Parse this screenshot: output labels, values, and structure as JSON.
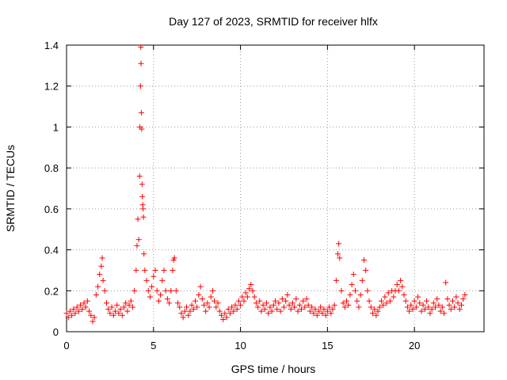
{
  "chart_data": {
    "type": "scatter",
    "title": "Day 127 of 2023, SRMTID for receiver hlfx",
    "xlabel": "GPS time / hours",
    "ylabel": "SRMTID / TECUs",
    "xlim": [
      0,
      24
    ],
    "ylim": [
      0,
      1.4
    ],
    "xticks": [
      0,
      5,
      10,
      15,
      20
    ],
    "yticks": [
      0,
      0.2,
      0.4,
      0.6,
      0.8,
      1,
      1.2,
      1.4
    ],
    "grid": true,
    "marker": "+",
    "color": "#ff0000",
    "series": [
      {
        "name": "SRMTID",
        "points": [
          [
            0.0,
            0.09
          ],
          [
            0.1,
            0.07
          ],
          [
            0.2,
            0.1
          ],
          [
            0.3,
            0.08
          ],
          [
            0.4,
            0.11
          ],
          [
            0.5,
            0.09
          ],
          [
            0.6,
            0.12
          ],
          [
            0.7,
            0.1
          ],
          [
            0.8,
            0.13
          ],
          [
            0.9,
            0.11
          ],
          [
            1.0,
            0.14
          ],
          [
            1.1,
            0.12
          ],
          [
            1.2,
            0.15
          ],
          [
            1.3,
            0.1
          ],
          [
            1.4,
            0.08
          ],
          [
            1.5,
            0.05
          ],
          [
            1.6,
            0.07
          ],
          [
            1.7,
            0.18
          ],
          [
            1.8,
            0.22
          ],
          [
            1.9,
            0.28
          ],
          [
            2.0,
            0.32
          ],
          [
            2.05,
            0.36
          ],
          [
            2.1,
            0.25
          ],
          [
            2.2,
            0.2
          ],
          [
            2.3,
            0.14
          ],
          [
            2.4,
            0.11
          ],
          [
            2.5,
            0.09
          ],
          [
            2.6,
            0.12
          ],
          [
            2.7,
            0.08
          ],
          [
            2.8,
            0.1
          ],
          [
            2.9,
            0.13
          ],
          [
            3.0,
            0.09
          ],
          [
            3.1,
            0.11
          ],
          [
            3.2,
            0.08
          ],
          [
            3.3,
            0.12
          ],
          [
            3.4,
            0.14
          ],
          [
            3.5,
            0.1
          ],
          [
            3.6,
            0.13
          ],
          [
            3.7,
            0.15
          ],
          [
            3.8,
            0.12
          ],
          [
            3.9,
            0.2
          ],
          [
            4.0,
            0.3
          ],
          [
            4.05,
            0.42
          ],
          [
            4.1,
            0.55
          ],
          [
            4.15,
            0.45
          ],
          [
            4.2,
            0.76
          ],
          [
            4.22,
            1.0
          ],
          [
            4.25,
            1.2
          ],
          [
            4.27,
            1.39
          ],
          [
            4.28,
            1.31
          ],
          [
            4.3,
            1.07
          ],
          [
            4.32,
            0.99
          ],
          [
            4.34,
            0.72
          ],
          [
            4.36,
            0.66
          ],
          [
            4.38,
            0.62
          ],
          [
            4.4,
            0.6
          ],
          [
            4.42,
            0.56
          ],
          [
            4.45,
            0.38
          ],
          [
            4.5,
            0.3
          ],
          [
            4.6,
            0.25
          ],
          [
            4.7,
            0.2
          ],
          [
            4.8,
            0.17
          ],
          [
            4.9,
            0.22
          ],
          [
            5.0,
            0.27
          ],
          [
            5.1,
            0.3
          ],
          [
            5.2,
            0.2
          ],
          [
            5.3,
            0.15
          ],
          [
            5.4,
            0.18
          ],
          [
            5.5,
            0.25
          ],
          [
            5.6,
            0.3
          ],
          [
            5.7,
            0.2
          ],
          [
            5.8,
            0.16
          ],
          [
            5.9,
            0.14
          ],
          [
            6.0,
            0.2
          ],
          [
            6.1,
            0.3
          ],
          [
            6.15,
            0.35
          ],
          [
            6.2,
            0.36
          ],
          [
            6.3,
            0.2
          ],
          [
            6.4,
            0.14
          ],
          [
            6.5,
            0.12
          ],
          [
            6.6,
            0.09
          ],
          [
            6.7,
            0.07
          ],
          [
            6.8,
            0.1
          ],
          [
            6.9,
            0.12
          ],
          [
            7.0,
            0.08
          ],
          [
            7.1,
            0.1
          ],
          [
            7.2,
            0.13
          ],
          [
            7.3,
            0.11
          ],
          [
            7.4,
            0.15
          ],
          [
            7.5,
            0.12
          ],
          [
            7.6,
            0.18
          ],
          [
            7.7,
            0.22
          ],
          [
            7.8,
            0.16
          ],
          [
            7.9,
            0.13
          ],
          [
            8.0,
            0.1
          ],
          [
            8.1,
            0.14
          ],
          [
            8.2,
            0.12
          ],
          [
            8.3,
            0.17
          ],
          [
            8.4,
            0.2
          ],
          [
            8.5,
            0.15
          ],
          [
            8.6,
            0.12
          ],
          [
            8.7,
            0.14
          ],
          [
            8.8,
            0.1
          ],
          [
            8.9,
            0.08
          ],
          [
            9.0,
            0.06
          ],
          [
            9.1,
            0.09
          ],
          [
            9.2,
            0.07
          ],
          [
            9.3,
            0.11
          ],
          [
            9.4,
            0.09
          ],
          [
            9.5,
            0.12
          ],
          [
            9.6,
            0.1
          ],
          [
            9.7,
            0.13
          ],
          [
            9.8,
            0.11
          ],
          [
            9.9,
            0.15
          ],
          [
            10.0,
            0.13
          ],
          [
            10.1,
            0.17
          ],
          [
            10.2,
            0.15
          ],
          [
            10.3,
            0.19
          ],
          [
            10.4,
            0.17
          ],
          [
            10.5,
            0.21
          ],
          [
            10.6,
            0.23
          ],
          [
            10.7,
            0.2
          ],
          [
            10.8,
            0.17
          ],
          [
            10.9,
            0.14
          ],
          [
            11.0,
            0.12
          ],
          [
            11.1,
            0.15
          ],
          [
            11.2,
            0.1
          ],
          [
            11.3,
            0.13
          ],
          [
            11.4,
            0.11
          ],
          [
            11.5,
            0.14
          ],
          [
            11.6,
            0.09
          ],
          [
            11.7,
            0.12
          ],
          [
            11.8,
            0.1
          ],
          [
            11.9,
            0.13
          ],
          [
            12.0,
            0.15
          ],
          [
            12.1,
            0.11
          ],
          [
            12.2,
            0.14
          ],
          [
            12.3,
            0.1
          ],
          [
            12.4,
            0.16
          ],
          [
            12.5,
            0.12
          ],
          [
            12.6,
            0.15
          ],
          [
            12.7,
            0.18
          ],
          [
            12.8,
            0.13
          ],
          [
            12.9,
            0.11
          ],
          [
            13.0,
            0.14
          ],
          [
            13.1,
            0.12
          ],
          [
            13.2,
            0.16
          ],
          [
            13.3,
            0.1
          ],
          [
            13.4,
            0.13
          ],
          [
            13.5,
            0.11
          ],
          [
            13.6,
            0.15
          ],
          [
            13.7,
            0.12
          ],
          [
            13.8,
            0.16
          ],
          [
            13.9,
            0.13
          ],
          [
            14.0,
            0.1
          ],
          [
            14.1,
            0.12
          ],
          [
            14.2,
            0.09
          ],
          [
            14.3,
            0.11
          ],
          [
            14.4,
            0.08
          ],
          [
            14.5,
            0.1
          ],
          [
            14.6,
            0.12
          ],
          [
            14.7,
            0.09
          ],
          [
            14.8,
            0.11
          ],
          [
            14.9,
            0.08
          ],
          [
            15.0,
            0.1
          ],
          [
            15.1,
            0.12
          ],
          [
            15.2,
            0.09
          ],
          [
            15.3,
            0.11
          ],
          [
            15.4,
            0.13
          ],
          [
            15.5,
            0.25
          ],
          [
            15.6,
            0.38
          ],
          [
            15.65,
            0.43
          ],
          [
            15.7,
            0.36
          ],
          [
            15.8,
            0.2
          ],
          [
            15.9,
            0.14
          ],
          [
            16.0,
            0.12
          ],
          [
            16.1,
            0.15
          ],
          [
            16.2,
            0.13
          ],
          [
            16.3,
            0.18
          ],
          [
            16.4,
            0.23
          ],
          [
            16.5,
            0.28
          ],
          [
            16.6,
            0.2
          ],
          [
            16.7,
            0.15
          ],
          [
            16.8,
            0.12
          ],
          [
            16.9,
            0.18
          ],
          [
            17.0,
            0.25
          ],
          [
            17.1,
            0.35
          ],
          [
            17.2,
            0.3
          ],
          [
            17.3,
            0.2
          ],
          [
            17.4,
            0.15
          ],
          [
            17.5,
            0.12
          ],
          [
            17.6,
            0.09
          ],
          [
            17.7,
            0.11
          ],
          [
            17.8,
            0.08
          ],
          [
            17.9,
            0.1
          ],
          [
            18.0,
            0.12
          ],
          [
            18.1,
            0.15
          ],
          [
            18.2,
            0.13
          ],
          [
            18.3,
            0.17
          ],
          [
            18.4,
            0.14
          ],
          [
            18.5,
            0.19
          ],
          [
            18.6,
            0.15
          ],
          [
            18.7,
            0.2
          ],
          [
            18.8,
            0.17
          ],
          [
            18.9,
            0.2
          ],
          [
            19.0,
            0.23
          ],
          [
            19.1,
            0.2
          ],
          [
            19.2,
            0.25
          ],
          [
            19.3,
            0.22
          ],
          [
            19.4,
            0.18
          ],
          [
            19.5,
            0.15
          ],
          [
            19.6,
            0.12
          ],
          [
            19.7,
            0.1
          ],
          [
            19.8,
            0.13
          ],
          [
            19.9,
            0.11
          ],
          [
            20.0,
            0.15
          ],
          [
            20.1,
            0.12
          ],
          [
            20.2,
            0.17
          ],
          [
            20.3,
            0.14
          ],
          [
            20.4,
            0.1
          ],
          [
            20.5,
            0.13
          ],
          [
            20.6,
            0.11
          ],
          [
            20.7,
            0.15
          ],
          [
            20.8,
            0.12
          ],
          [
            20.9,
            0.09
          ],
          [
            21.0,
            0.11
          ],
          [
            21.1,
            0.14
          ],
          [
            21.2,
            0.12
          ],
          [
            21.3,
            0.16
          ],
          [
            21.4,
            0.13
          ],
          [
            21.5,
            0.1
          ],
          [
            21.6,
            0.12
          ],
          [
            21.7,
            0.09
          ],
          [
            21.8,
            0.24
          ],
          [
            21.9,
            0.16
          ],
          [
            22.0,
            0.13
          ],
          [
            22.1,
            0.11
          ],
          [
            22.2,
            0.15
          ],
          [
            22.3,
            0.12
          ],
          [
            22.4,
            0.17
          ],
          [
            22.5,
            0.14
          ],
          [
            22.6,
            0.11
          ],
          [
            22.7,
            0.13
          ],
          [
            22.8,
            0.16
          ],
          [
            22.9,
            0.18
          ]
        ]
      }
    ]
  }
}
